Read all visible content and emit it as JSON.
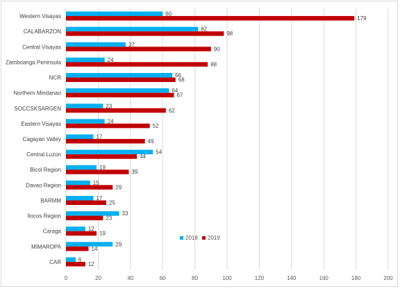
{
  "chart_data": {
    "type": "bar",
    "orientation": "horizontal",
    "title": "",
    "xlabel": "",
    "ylabel": "",
    "categories": [
      "Western Visayas",
      "CALABARZON",
      "Central Visayas",
      "Zamboanga Peninsula",
      "NCR",
      "Northern Mindanao",
      "SOCCSKSARGEN",
      "Eastern Visayas",
      "Cagayan Valley",
      "Central Luzon",
      "Bicol Region",
      "Davao Region",
      "BARMM",
      "Ilocos Region",
      "Caraga",
      "MIMAROPA",
      "CAR"
    ],
    "series": [
      {
        "name": "2018",
        "color": "#00b0f0",
        "values": [
          60,
          82,
          37,
          24,
          66,
          64,
          23,
          24,
          17,
          54,
          19,
          15,
          17,
          33,
          12,
          29,
          6
        ]
      },
      {
        "name": "2019",
        "color": "#c00000",
        "values": [
          179,
          98,
          90,
          88,
          68,
          67,
          62,
          52,
          49,
          44,
          39,
          29,
          25,
          23,
          19,
          14,
          12
        ]
      }
    ],
    "xlim": [
      0,
      200
    ],
    "xticks": [
      "0",
      "20",
      "40",
      "60",
      "80",
      "100",
      "120",
      "140",
      "160",
      "180",
      "200"
    ],
    "grid": true,
    "legend_position": "lower-right inside plot"
  }
}
